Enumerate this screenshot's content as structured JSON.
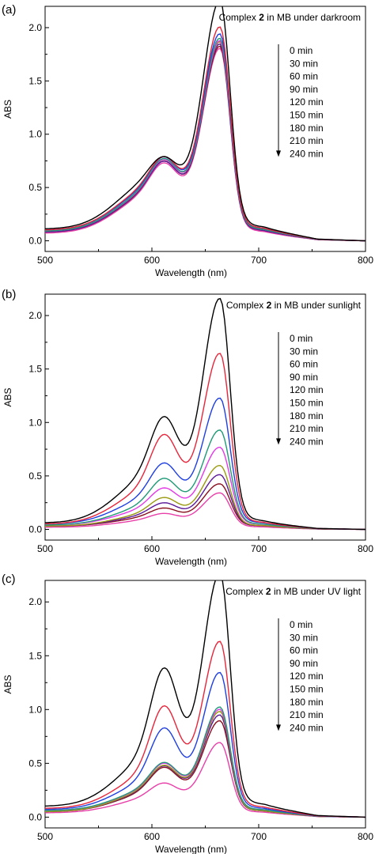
{
  "figure": {
    "panels": [
      {
        "label": "(a)",
        "title_prefix": "Complex ",
        "title_bold": "2",
        "title_suffix": " in MB under darkroom"
      },
      {
        "label": "(b)",
        "title_prefix": "Complex ",
        "title_bold": "2",
        "title_suffix": " in MB under sunlight"
      },
      {
        "label": "(c)",
        "title_prefix": "Complex ",
        "title_bold": "2",
        "title_suffix": " in MB under UV light"
      }
    ]
  },
  "colors": {
    "series": [
      "#000000",
      "#e8253a",
      "#1f3fe0",
      "#1f9a76",
      "#e23ae6",
      "#9a9a10",
      "#5a1a9a",
      "#8a1020",
      "#e83fa8"
    ]
  },
  "chart_data": [
    {
      "type": "line",
      "title": "Complex 2 in MB under darkroom",
      "xlabel": "Wavelength (nm)",
      "ylabel": "ABS",
      "xlim": [
        500,
        800
      ],
      "ylim": [
        -0.1,
        2.2
      ],
      "xticks": [
        500,
        600,
        700,
        800
      ],
      "yticks": [
        0.0,
        0.5,
        1.0,
        1.5,
        2.0
      ],
      "legend_position": "right, arrow downward",
      "peaks": {
        "x": [
          612,
          664
        ]
      },
      "series": [
        {
          "name": "0 min",
          "peak1": 0.95,
          "peak2": 2.0,
          "base": 0.11
        },
        {
          "name": "30 min",
          "peak1": 0.93,
          "peak2": 1.78,
          "base": 0.1
        },
        {
          "name": "60 min",
          "peak1": 0.92,
          "peak2": 1.72,
          "base": 0.1
        },
        {
          "name": "90 min",
          "peak1": 0.91,
          "peak2": 1.69,
          "base": 0.09
        },
        {
          "name": "120 min",
          "peak1": 0.9,
          "peak2": 1.67,
          "base": 0.09
        },
        {
          "name": "150 min",
          "peak1": 0.9,
          "peak2": 1.66,
          "base": 0.09
        },
        {
          "name": "180 min",
          "peak1": 0.89,
          "peak2": 1.65,
          "base": 0.08
        },
        {
          "name": "210 min",
          "peak1": 0.89,
          "peak2": 1.63,
          "base": 0.08
        },
        {
          "name": "240 min",
          "peak1": 0.88,
          "peak2": 1.62,
          "base": 0.07
        }
      ]
    },
    {
      "type": "line",
      "title": "Complex 2 in MB under sunlight",
      "xlabel": "Wavelength (nm)",
      "ylabel": "ABS",
      "xlim": [
        500,
        800
      ],
      "ylim": [
        -0.1,
        2.2
      ],
      "xticks": [
        500,
        600,
        700,
        800
      ],
      "yticks": [
        0.0,
        0.5,
        1.0,
        1.5,
        2.0
      ],
      "legend_position": "right, arrow downward",
      "peaks": {
        "x": [
          612,
          664
        ]
      },
      "series": [
        {
          "name": "0 min",
          "peak1": 1.26,
          "peak2": 1.96,
          "base": 0.06
        },
        {
          "name": "30 min",
          "peak1": 1.04,
          "peak2": 1.49,
          "base": 0.05
        },
        {
          "name": "60 min",
          "peak1": 0.72,
          "peak2": 1.1,
          "base": 0.05
        },
        {
          "name": "90 min",
          "peak1": 0.55,
          "peak2": 0.83,
          "base": 0.04
        },
        {
          "name": "120 min",
          "peak1": 0.44,
          "peak2": 0.68,
          "base": 0.04
        },
        {
          "name": "150 min",
          "peak1": 0.34,
          "peak2": 0.53,
          "base": 0.03
        },
        {
          "name": "180 min",
          "peak1": 0.28,
          "peak2": 0.45,
          "base": 0.03
        },
        {
          "name": "210 min",
          "peak1": 0.22,
          "peak2": 0.37,
          "base": 0.03
        },
        {
          "name": "240 min",
          "peak1": 0.17,
          "peak2": 0.3,
          "base": 0.02
        }
      ]
    },
    {
      "type": "line",
      "title": "Complex 2 in MB under UV light",
      "xlabel": "Wavelength (nm)",
      "ylabel": "ABS",
      "xlim": [
        500,
        800
      ],
      "ylim": [
        -0.1,
        2.2
      ],
      "xticks": [
        500,
        600,
        700,
        800
      ],
      "yticks": [
        0.0,
        0.5,
        1.0,
        1.5,
        2.0
      ],
      "legend_position": "right, arrow downward",
      "peaks": {
        "x": [
          612,
          664
        ]
      },
      "series": [
        {
          "name": "0 min",
          "peak1": 1.56,
          "peak2": 2.02,
          "base": 0.1
        },
        {
          "name": "30 min",
          "peak1": 1.15,
          "peak2": 1.45,
          "base": 0.08
        },
        {
          "name": "60 min",
          "peak1": 0.92,
          "peak2": 1.19,
          "base": 0.07
        },
        {
          "name": "90 min",
          "peak1": 0.57,
          "peak2": 0.9,
          "base": 0.06
        },
        {
          "name": "120 min",
          "peak1": 0.56,
          "peak2": 0.88,
          "base": 0.06
        },
        {
          "name": "150 min",
          "peak1": 0.55,
          "peak2": 0.87,
          "base": 0.05
        },
        {
          "name": "180 min",
          "peak1": 0.54,
          "peak2": 0.84,
          "base": 0.05
        },
        {
          "name": "210 min",
          "peak1": 0.52,
          "peak2": 0.79,
          "base": 0.05
        },
        {
          "name": "240 min",
          "peak1": 0.36,
          "peak2": 0.61,
          "base": 0.04
        }
      ]
    }
  ]
}
